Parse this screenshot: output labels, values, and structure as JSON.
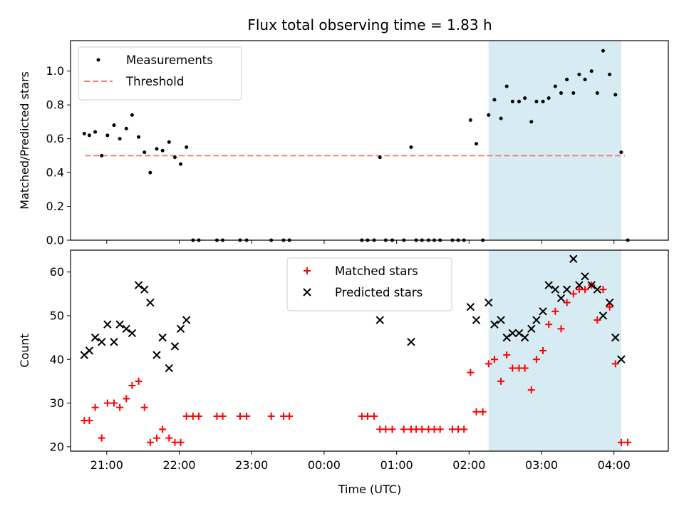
{
  "chart_data": {
    "type": "scatter",
    "title": "Flux total observing time = 1.83 h",
    "xlabel": "Time (UTC)",
    "x_axis": {
      "unit": "hours since 20:00 UTC",
      "range": [
        0.5,
        8.75
      ],
      "ticks": [
        {
          "value": 1,
          "label": "21:00"
        },
        {
          "value": 2,
          "label": "22:00"
        },
        {
          "value": 3,
          "label": "23:00"
        },
        {
          "value": 4,
          "label": "00:00"
        },
        {
          "value": 5,
          "label": "01:00"
        },
        {
          "value": 6,
          "label": "02:00"
        },
        {
          "value": 7,
          "label": "03:00"
        },
        {
          "value": 8,
          "label": "04:00"
        }
      ]
    },
    "highlight": {
      "x_start": 6.27,
      "x_end": 8.1,
      "color": "#add8e6"
    },
    "panels": [
      {
        "id": "ratio",
        "ylabel": "Matched/Predicted stars",
        "ylim": [
          0,
          1.18
        ],
        "yticks": [
          {
            "value": 0.0,
            "label": "0.0"
          },
          {
            "value": 0.2,
            "label": "0.2"
          },
          {
            "value": 0.4,
            "label": "0.4"
          },
          {
            "value": 0.6,
            "label": "0.6"
          },
          {
            "value": 0.8,
            "label": "0.8"
          },
          {
            "value": 1.0,
            "label": "1.0"
          }
        ],
        "legend": {
          "position": "upper-left",
          "entries": [
            {
              "label": "Measurements",
              "marker": "dot",
              "color": "#000000"
            },
            {
              "label": "Threshold",
              "marker": "dashed-line",
              "color": "#f08080"
            }
          ]
        },
        "threshold": {
          "value": 0.5,
          "x_start": 0.7,
          "x_end": 8.15,
          "color": "#f08080"
        },
        "series": [
          {
            "name": "Measurements",
            "color": "#000000",
            "points": [
              [
                0.69,
                0.63
              ],
              [
                0.76,
                0.62
              ],
              [
                0.84,
                0.64
              ],
              [
                0.93,
                0.5
              ],
              [
                1.01,
                0.62
              ],
              [
                1.1,
                0.68
              ],
              [
                1.18,
                0.6
              ],
              [
                1.27,
                0.66
              ],
              [
                1.35,
                0.74
              ],
              [
                1.44,
                0.61
              ],
              [
                1.52,
                0.52
              ],
              [
                1.6,
                0.4
              ],
              [
                1.69,
                0.54
              ],
              [
                1.77,
                0.53
              ],
              [
                1.86,
                0.58
              ],
              [
                1.94,
                0.49
              ],
              [
                2.02,
                0.45
              ],
              [
                2.1,
                0.55
              ],
              [
                2.19,
                0
              ],
              [
                2.27,
                0
              ],
              [
                2.52,
                0
              ],
              [
                2.6,
                0
              ],
              [
                2.84,
                0
              ],
              [
                2.93,
                0
              ],
              [
                3.27,
                0
              ],
              [
                3.44,
                0
              ],
              [
                3.52,
                0
              ],
              [
                4.52,
                0
              ],
              [
                4.6,
                0
              ],
              [
                4.69,
                0
              ],
              [
                4.77,
                0.49
              ],
              [
                4.85,
                0
              ],
              [
                4.94,
                0
              ],
              [
                5.1,
                0
              ],
              [
                5.2,
                0.55
              ],
              [
                5.27,
                0
              ],
              [
                5.35,
                0
              ],
              [
                5.44,
                0
              ],
              [
                5.52,
                0
              ],
              [
                5.6,
                0
              ],
              [
                5.77,
                0
              ],
              [
                5.85,
                0
              ],
              [
                5.93,
                0
              ],
              [
                6.02,
                0.71
              ],
              [
                6.19,
                0
              ],
              [
                6.1,
                0.57
              ],
              [
                6.27,
                0.74
              ],
              [
                6.35,
                0.83
              ],
              [
                6.44,
                0.72
              ],
              [
                6.52,
                0.91
              ],
              [
                6.6,
                0.82
              ],
              [
                6.69,
                0.82
              ],
              [
                6.77,
                0.84
              ],
              [
                6.86,
                0.7
              ],
              [
                6.93,
                0.82
              ],
              [
                7.02,
                0.82
              ],
              [
                7.1,
                0.84
              ],
              [
                7.19,
                0.91
              ],
              [
                7.27,
                0.87
              ],
              [
                7.35,
                0.95
              ],
              [
                7.44,
                0.87
              ],
              [
                7.52,
                0.98
              ],
              [
                7.6,
                0.95
              ],
              [
                7.69,
                1.0
              ],
              [
                7.77,
                0.87
              ],
              [
                7.85,
                1.12
              ],
              [
                7.94,
                0.98
              ],
              [
                8.02,
                0.86
              ],
              [
                8.1,
                0.52
              ],
              [
                8.19,
                0
              ]
            ]
          }
        ]
      },
      {
        "id": "counts",
        "ylabel": "Count",
        "ylim": [
          19,
          65
        ],
        "yticks": [
          {
            "value": 20,
            "label": "20"
          },
          {
            "value": 30,
            "label": "30"
          },
          {
            "value": 40,
            "label": "40"
          },
          {
            "value": 50,
            "label": "50"
          },
          {
            "value": 60,
            "label": "60"
          }
        ],
        "legend": {
          "position": "upper-center",
          "entries": [
            {
              "label": "Matched stars",
              "marker": "plus",
              "color": "#ff0000"
            },
            {
              "label": "Predicted stars",
              "marker": "x",
              "color": "#000000"
            }
          ]
        },
        "series": [
          {
            "name": "Matched stars",
            "marker": "plus",
            "color": "#ff0000",
            "points": [
              [
                0.69,
                26
              ],
              [
                0.76,
                26
              ],
              [
                0.84,
                29
              ],
              [
                0.93,
                22
              ],
              [
                1.01,
                30
              ],
              [
                1.1,
                30
              ],
              [
                1.18,
                29
              ],
              [
                1.27,
                31
              ],
              [
                1.35,
                34
              ],
              [
                1.44,
                35
              ],
              [
                1.52,
                29
              ],
              [
                1.6,
                21
              ],
              [
                1.69,
                22
              ],
              [
                1.77,
                24
              ],
              [
                1.86,
                22
              ],
              [
                1.94,
                21
              ],
              [
                2.02,
                21
              ],
              [
                2.1,
                27
              ],
              [
                2.19,
                27
              ],
              [
                2.27,
                27
              ],
              [
                2.52,
                27
              ],
              [
                2.6,
                27
              ],
              [
                2.84,
                27
              ],
              [
                2.93,
                27
              ],
              [
                3.27,
                27
              ],
              [
                3.44,
                27
              ],
              [
                3.52,
                27
              ],
              [
                4.52,
                27
              ],
              [
                4.6,
                27
              ],
              [
                4.69,
                27
              ],
              [
                4.77,
                24
              ],
              [
                4.85,
                24
              ],
              [
                4.94,
                24
              ],
              [
                5.1,
                24
              ],
              [
                5.2,
                24
              ],
              [
                5.27,
                24
              ],
              [
                5.35,
                24
              ],
              [
                5.44,
                24
              ],
              [
                5.52,
                24
              ],
              [
                5.6,
                24
              ],
              [
                5.77,
                24
              ],
              [
                5.85,
                24
              ],
              [
                5.93,
                24
              ],
              [
                6.02,
                37
              ],
              [
                6.1,
                28
              ],
              [
                6.19,
                28
              ],
              [
                6.27,
                39
              ],
              [
                6.35,
                40
              ],
              [
                6.44,
                35
              ],
              [
                6.52,
                41
              ],
              [
                6.6,
                38
              ],
              [
                6.69,
                38
              ],
              [
                6.77,
                38
              ],
              [
                6.86,
                33
              ],
              [
                6.93,
                40
              ],
              [
                7.02,
                42
              ],
              [
                7.1,
                48
              ],
              [
                7.19,
                51
              ],
              [
                7.27,
                47
              ],
              [
                7.35,
                53
              ],
              [
                7.44,
                55
              ],
              [
                7.52,
                56
              ],
              [
                7.6,
                56
              ],
              [
                7.69,
                57
              ],
              [
                7.77,
                49
              ],
              [
                7.85,
                56
              ],
              [
                7.94,
                52
              ],
              [
                8.02,
                39
              ],
              [
                8.1,
                21
              ],
              [
                8.19,
                21
              ]
            ]
          },
          {
            "name": "Predicted stars",
            "marker": "x",
            "color": "#000000",
            "points": [
              [
                0.69,
                41
              ],
              [
                0.76,
                42
              ],
              [
                0.84,
                45
              ],
              [
                0.93,
                44
              ],
              [
                1.01,
                48
              ],
              [
                1.1,
                44
              ],
              [
                1.18,
                48
              ],
              [
                1.27,
                47
              ],
              [
                1.35,
                46
              ],
              [
                1.44,
                57
              ],
              [
                1.52,
                56
              ],
              [
                1.6,
                53
              ],
              [
                1.69,
                41
              ],
              [
                1.77,
                45
              ],
              [
                1.86,
                38
              ],
              [
                1.94,
                43
              ],
              [
                2.02,
                47
              ],
              [
                2.1,
                49
              ],
              [
                4.77,
                49
              ],
              [
                5.2,
                44
              ],
              [
                6.02,
                52
              ],
              [
                6.1,
                49
              ],
              [
                6.27,
                53
              ],
              [
                6.35,
                48
              ],
              [
                6.44,
                49
              ],
              [
                6.52,
                45
              ],
              [
                6.6,
                46
              ],
              [
                6.69,
                46
              ],
              [
                6.77,
                45
              ],
              [
                6.86,
                47
              ],
              [
                6.93,
                49
              ],
              [
                7.02,
                51
              ],
              [
                7.1,
                57
              ],
              [
                7.19,
                56
              ],
              [
                7.27,
                54
              ],
              [
                7.35,
                56
              ],
              [
                7.44,
                63
              ],
              [
                7.52,
                57
              ],
              [
                7.6,
                59
              ],
              [
                7.69,
                57
              ],
              [
                7.77,
                56
              ],
              [
                7.85,
                50
              ],
              [
                7.94,
                53
              ],
              [
                8.02,
                45
              ],
              [
                8.1,
                40
              ]
            ]
          }
        ]
      }
    ]
  }
}
